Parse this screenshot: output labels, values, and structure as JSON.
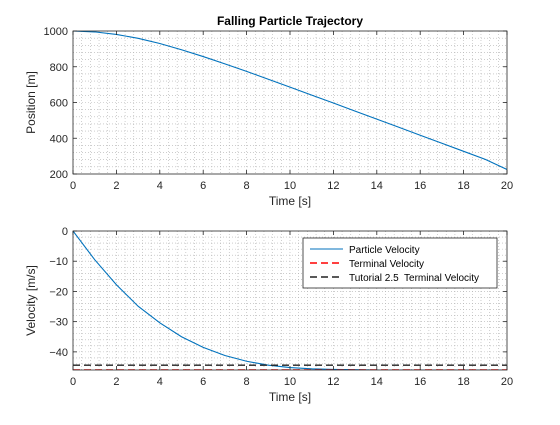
{
  "figure": {
    "background": "#ffffff"
  },
  "chart_data": [
    {
      "type": "line",
      "title": "Falling Particle Trajectory",
      "xlabel": "Time [s]",
      "ylabel": "Position [m]",
      "xlim": [
        0,
        20
      ],
      "ylim": [
        200,
        1000
      ],
      "xticks": [
        0,
        2,
        4,
        6,
        8,
        10,
        12,
        14,
        16,
        18,
        20
      ],
      "yticks": [
        200,
        400,
        600,
        800,
        1000
      ],
      "grid": "minor-dotted",
      "legend": null,
      "series": [
        {
          "color": "#0072BD",
          "style": "solid",
          "x": [
            0,
            1,
            2,
            3,
            4,
            5,
            6,
            7,
            8,
            9,
            10,
            11,
            12,
            13,
            14,
            15,
            16,
            17,
            18,
            19,
            20
          ],
          "y": [
            1000,
            995,
            981,
            959,
            930,
            895,
            857,
            816,
            774,
            730,
            686,
            641,
            597,
            552,
            507,
            462,
            417,
            372,
            327,
            282,
            225
          ]
        }
      ]
    },
    {
      "type": "line",
      "title": "",
      "xlabel": "Time [s]",
      "ylabel": "Velocity [m/s]",
      "xlim": [
        0,
        20
      ],
      "ylim": [
        -46,
        0
      ],
      "xticks": [
        0,
        2,
        4,
        6,
        8,
        10,
        12,
        14,
        16,
        18,
        20
      ],
      "yticks": [
        -40,
        -30,
        -20,
        -10,
        0
      ],
      "grid": "minor-dotted",
      "legend": "top-right",
      "series": [
        {
          "name": "Particle Velocity",
          "color": "#0072BD",
          "style": "solid",
          "x": [
            0,
            1,
            2,
            3,
            4,
            5,
            6,
            7,
            8,
            9,
            10,
            11,
            12,
            13,
            14,
            15,
            16,
            17,
            18,
            19,
            20
          ],
          "y": [
            0,
            -9.5,
            -17.8,
            -24.9,
            -30.4,
            -35.0,
            -38.5,
            -41.2,
            -43.1,
            -44.4,
            -45.2,
            -45.6,
            -45.8,
            -45.9,
            -46.0,
            -46.0,
            -46.0,
            -46.0,
            -46.0,
            -46.0,
            -46.0
          ]
        },
        {
          "name": "Terminal Velocity",
          "color": "#ff0000",
          "style": "dashed",
          "x": [
            0,
            20
          ],
          "y": [
            -46,
            -46
          ]
        },
        {
          "name": "Tutorial 2.5  Terminal Velocity",
          "color": "#222222",
          "style": "dashed",
          "x": [
            0,
            20
          ],
          "y": [
            -44.4,
            -44.4
          ]
        }
      ]
    }
  ]
}
